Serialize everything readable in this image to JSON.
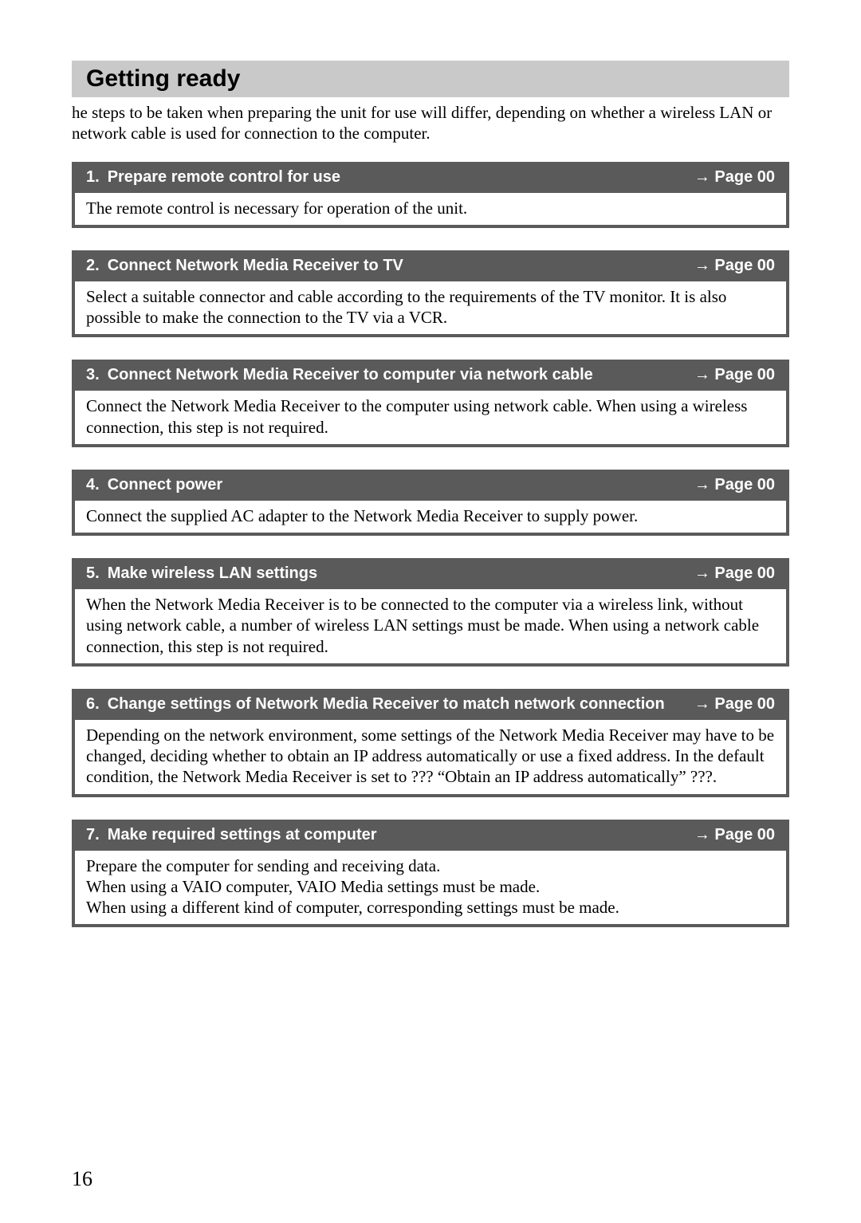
{
  "colors": {
    "section_bg": "#c9c9c9",
    "box_border": "#5a5a5a",
    "header_bg": "#5a5a5a",
    "header_text": "#ffffff",
    "body_text": "#000000",
    "page_bg": "#ffffff"
  },
  "fonts": {
    "heading_family": "Arial, Helvetica, sans-serif",
    "body_family": "\"Times New Roman\", Times, serif",
    "section_title_size_pt": 22,
    "step_header_size_pt": 15,
    "body_size_pt": 16
  },
  "section_title": "Getting ready",
  "intro": "he steps to be taken when preparing the unit for use will differ, depending on whether a wireless LAN or network cable is used for connection to the computer.",
  "page_label_prefix": "→ Page ",
  "steps": [
    {
      "num": "1.",
      "title": "Prepare remote control for use",
      "page": "00",
      "body": "The remote control is necessary for operation of the unit."
    },
    {
      "num": "2.",
      "title": "Connect Network Media Receiver to TV",
      "page": "00",
      "body": "Select a suitable connector and cable according to the requirements of the TV monitor. It is also possible to make the connection to the TV via a VCR."
    },
    {
      "num": "3.",
      "title": "Connect Network Media Receiver to computer via network cable",
      "page": "00",
      "body": "Connect the Network Media Receiver to the computer using network cable. When using a wireless connection, this step is not required."
    },
    {
      "num": "4.",
      "title": "Connect power",
      "page": "00",
      "body": "Connect the supplied AC adapter to the Network Media Receiver to supply power."
    },
    {
      "num": "5.",
      "title": "Make wireless LAN settings",
      "page": "00",
      "body": "When the Network Media Receiver is to be connected to the computer via a wireless link, without using network cable, a number of wireless LAN settings must be made. When using a network cable connection, this step is not required."
    },
    {
      "num": "6.",
      "title": "Change settings of Network Media Receiver to match network connection",
      "page": "00",
      "body": "Depending on the network environment, some settings of the Network Media Receiver may have to be changed, deciding whether to obtain an IP address automatically or use a fixed address. In the default condition, the Network Media Receiver is set to ??? “Obtain an IP address automatically” ???."
    },
    {
      "num": "7.",
      "title": "Make required settings at computer",
      "page": "00",
      "body": "Prepare the computer for sending and receiving data.\nWhen using a VAIO computer, VAIO Media settings must be made.\nWhen using a different kind of computer, corresponding settings must be made."
    }
  ],
  "page_number": "16"
}
